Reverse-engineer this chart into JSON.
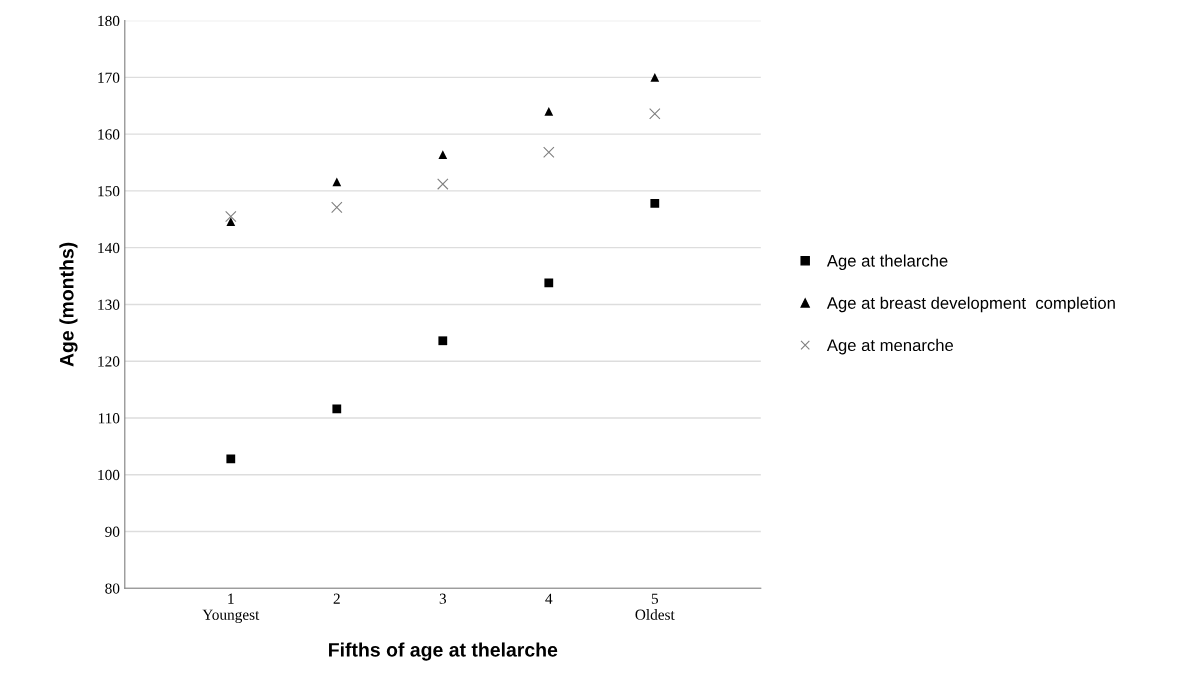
{
  "chart_data": {
    "type": "scatter",
    "xlabel": "Fifths of age at thelarche",
    "ylabel": "Age (months)",
    "categories": [
      "1\nYoungest",
      "2",
      "3",
      "4",
      "5\nOldest"
    ],
    "series": [
      {
        "name": "Age at thelarche",
        "color": "#000000",
        "marker": "square",
        "values": [
          102.8,
          111.6,
          123.6,
          133.8,
          147.8
        ]
      },
      {
        "name": "Age at breast development  completion",
        "color": "#000000",
        "marker": "triangle",
        "values": [
          144.6,
          151.6,
          156.4,
          164.0,
          170.0
        ]
      },
      {
        "name": "Age at menarche",
        "color": "#808080",
        "marker": "cross",
        "values": [
          145.5,
          147.1,
          151.2,
          156.8,
          163.6
        ]
      }
    ],
    "ylim": [
      80,
      180
    ],
    "yticks": [
      80,
      90,
      100,
      110,
      120,
      130,
      140,
      150,
      160,
      170,
      180
    ],
    "grid": "y",
    "legend": "right"
  }
}
